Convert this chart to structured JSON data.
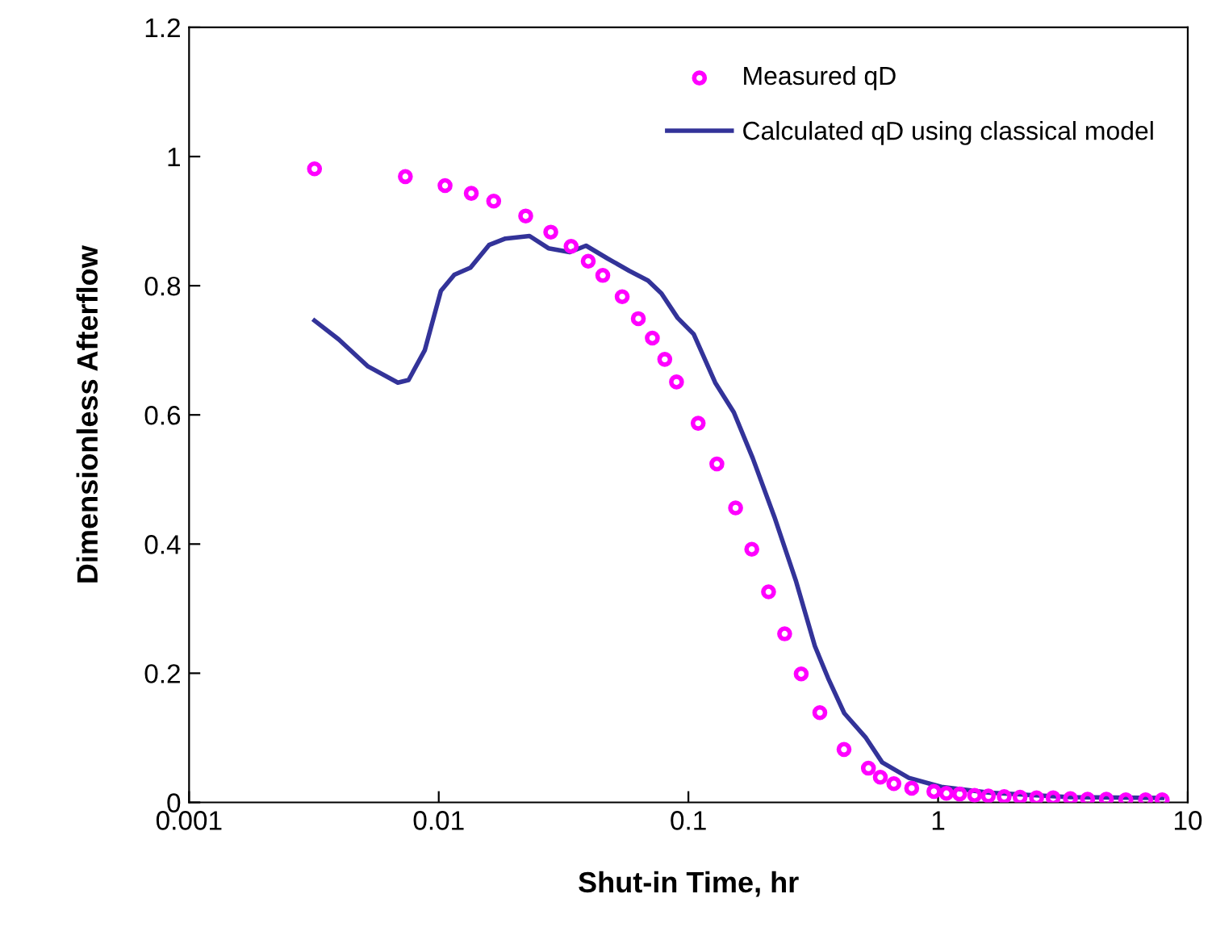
{
  "chart_data": {
    "type": "scatter",
    "xlabel": "Shut-in Time, hr",
    "ylabel": "Dimensionless Afterflow",
    "log": "x",
    "xlim": [
      0.001,
      10
    ],
    "xticks": [
      0.001,
      0.01,
      0.1,
      1,
      10
    ],
    "ylim": [
      0,
      1.2
    ],
    "yticks": [
      0,
      0.2,
      0.4,
      0.6,
      0.8,
      1,
      1.2
    ],
    "grid": false,
    "legend": "top right",
    "series": [
      {
        "name": "Measured qD",
        "marker": "circle",
        "color": "#ff00ff",
        "x": [
          0.00318,
          0.00735,
          0.0106,
          0.0135,
          0.0166,
          0.0223,
          0.0281,
          0.0339,
          0.0397,
          0.0454,
          0.0543,
          0.063,
          0.0717,
          0.0804,
          0.0896,
          0.1094,
          0.13,
          0.1545,
          0.1794,
          0.2094,
          0.2429,
          0.283,
          0.336,
          0.42,
          0.526,
          0.587,
          0.665,
          0.784,
          0.962,
          1.08,
          1.22,
          1.4,
          1.59,
          1.84,
          2.13,
          2.48,
          2.89,
          3.39,
          3.97,
          4.72,
          5.65,
          6.78,
          7.9
        ],
        "values": [
          0.981,
          0.969,
          0.955,
          0.943,
          0.931,
          0.908,
          0.883,
          0.861,
          0.838,
          0.816,
          0.783,
          0.749,
          0.719,
          0.686,
          0.651,
          0.587,
          0.524,
          0.456,
          0.392,
          0.326,
          0.261,
          0.199,
          0.139,
          0.082,
          0.053,
          0.039,
          0.029,
          0.022,
          0.017,
          0.014,
          0.013,
          0.011,
          0.01,
          0.009,
          0.008,
          0.007,
          0.007,
          0.006,
          0.005,
          0.005,
          0.004,
          0.004,
          0.004
        ]
      },
      {
        "name": "Calculated qD using classical model",
        "type": "line",
        "marker": "none",
        "line_style": "solid",
        "color": "#333399",
        "x": [
          0.00318,
          0.00397,
          0.00521,
          0.00686,
          0.00757,
          0.00879,
          0.0102,
          0.01155,
          0.0134,
          0.0159,
          0.0185,
          0.0231,
          0.0275,
          0.0335,
          0.0389,
          0.0475,
          0.058,
          0.0689,
          0.078,
          0.0906,
          0.105,
          0.128,
          0.152,
          0.181,
          0.221,
          0.27,
          0.321,
          0.363,
          0.421,
          0.514,
          0.597,
          0.764,
          1.03,
          1.61,
          3.39,
          7.9
        ],
        "values": [
          0.746,
          0.717,
          0.675,
          0.65,
          0.654,
          0.7,
          0.792,
          0.817,
          0.828,
          0.863,
          0.873,
          0.877,
          0.858,
          0.852,
          0.862,
          0.842,
          0.823,
          0.808,
          0.788,
          0.75,
          0.725,
          0.65,
          0.604,
          0.533,
          0.442,
          0.342,
          0.242,
          0.192,
          0.138,
          0.1,
          0.062,
          0.038,
          0.024,
          0.015,
          0.008,
          0.007
        ]
      }
    ]
  }
}
